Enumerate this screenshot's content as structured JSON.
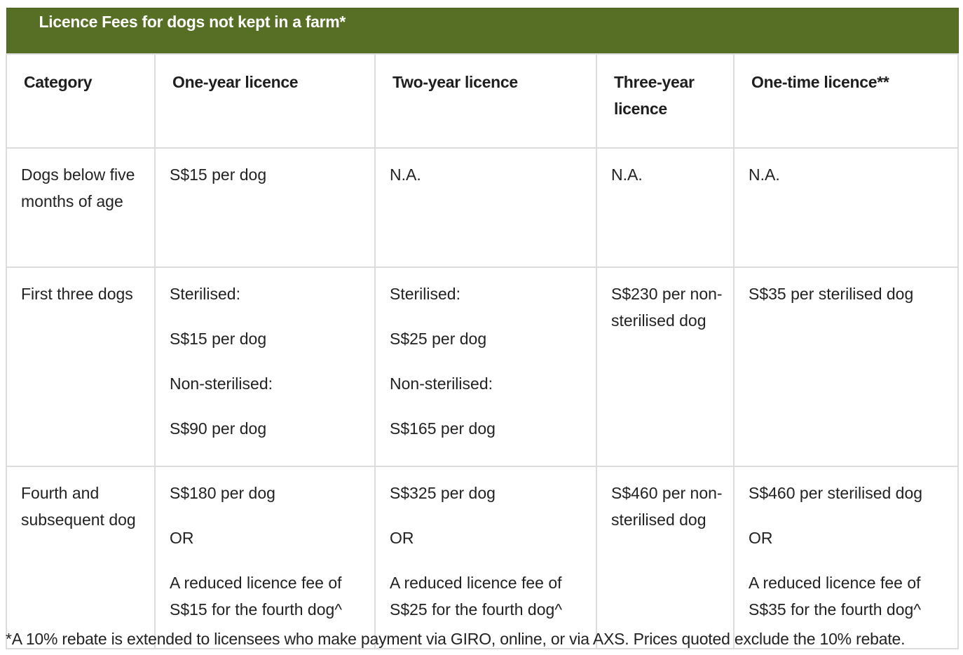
{
  "table": {
    "title": "Licence Fees for dogs not kept in a farm*",
    "headers": [
      "Category",
      "One-year licence",
      "Two-year licence",
      "Three-year licence",
      "One-time licence**"
    ],
    "rows": [
      {
        "category": [
          "Dogs below five months of age"
        ],
        "one_year": [
          "S$15 per dog"
        ],
        "two_year": [
          "N.A."
        ],
        "three_year": [
          "N.A."
        ],
        "one_time": [
          "N.A."
        ]
      },
      {
        "category": [
          "First three dogs"
        ],
        "one_year": [
          "Sterilised:",
          "S$15 per dog",
          "Non-sterilised:",
          "S$90 per dog"
        ],
        "two_year": [
          "Sterilised:",
          "S$25 per dog",
          "Non-sterilised:",
          "S$165 per dog"
        ],
        "three_year": [
          "S$230 per non-sterilised dog"
        ],
        "one_time": [
          "S$35 per sterilised dog"
        ]
      },
      {
        "category": [
          "Fourth and subsequent dog"
        ],
        "one_year": [
          "S$180 per dog",
          "OR",
          "A reduced licence fee of S$15 for the fourth dog^"
        ],
        "two_year": [
          "S$325 per dog",
          "OR",
          "A reduced licence fee of S$25 for the fourth dog^"
        ],
        "three_year": [
          "S$460 per non-sterilised dog"
        ],
        "one_time": [
          "S$460 per sterilised dog",
          "OR",
          "A reduced licence fee of S$35 for the fourth dog^"
        ]
      }
    ]
  },
  "footnote": "*A 10% rebate is extended to licensees who make payment via GIRO, online, or via AXS. Prices quoted exclude the 10% rebate.",
  "colors": {
    "banner": "#576f24",
    "border": "#dcdcdc"
  }
}
